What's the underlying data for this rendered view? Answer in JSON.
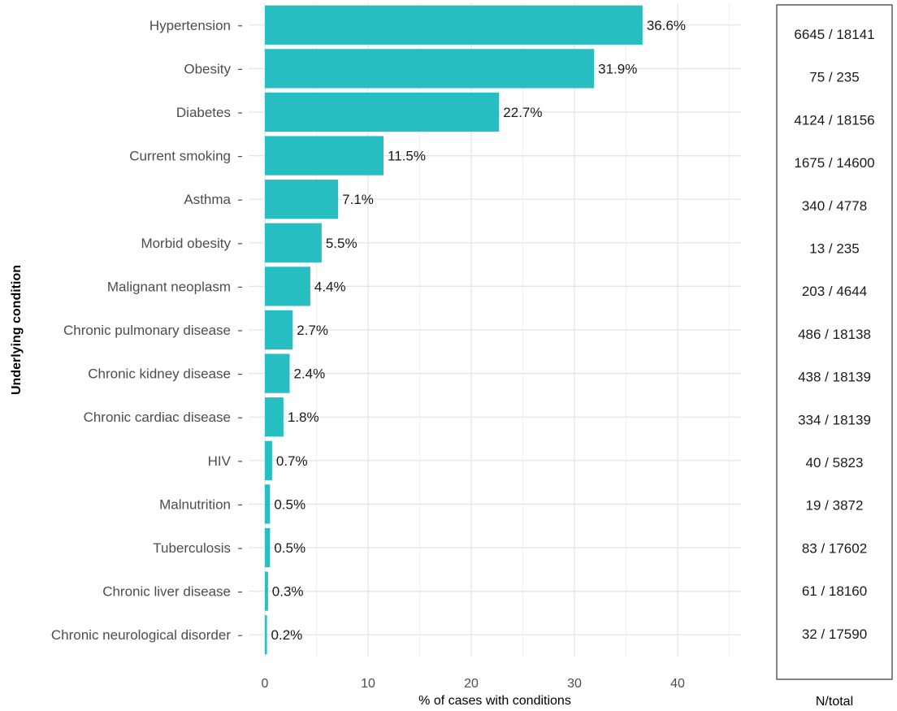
{
  "chart_data": {
    "type": "bar",
    "orientation": "horizontal",
    "categories": [
      "Hypertension",
      "Obesity",
      "Diabetes",
      "Current smoking",
      "Asthma",
      "Morbid obesity",
      "Malignant neoplasm",
      "Chronic pulmonary disease",
      "Chronic kidney disease",
      "Chronic cardiac disease",
      "HIV",
      "Malnutrition",
      "Tuberculosis",
      "Chronic liver disease",
      "Chronic neurological disorder"
    ],
    "values": [
      36.6,
      31.9,
      22.7,
      11.5,
      7.1,
      5.5,
      4.4,
      2.7,
      2.4,
      1.8,
      0.7,
      0.5,
      0.5,
      0.3,
      0.2
    ],
    "value_labels": [
      "36.6%",
      "31.9%",
      "22.7%",
      "11.5%",
      "7.1%",
      "5.5%",
      "4.4%",
      "2.7%",
      "2.4%",
      "1.8%",
      "0.7%",
      "0.5%",
      "0.5%",
      "0.3%",
      "0.2%"
    ],
    "xlabel": "% of cases with conditions",
    "ylabel": "Underlying condition",
    "xlim": [
      0,
      46
    ],
    "x_ticks": [
      0,
      10,
      20,
      30,
      40
    ],
    "grid": true,
    "bar_color": "#26BEC0",
    "table_title": "N/total",
    "n_total": [
      "6645 / 18141",
      "75 / 235",
      "4124 / 18156",
      "1675 / 14600",
      "340 / 4778",
      "13 / 235",
      "203 / 4644",
      "486 / 18138",
      "438 / 18139",
      "334 / 18139",
      "40 / 5823",
      "19 / 3872",
      "83 / 17602",
      "61 / 18160",
      "32 / 17590"
    ]
  }
}
